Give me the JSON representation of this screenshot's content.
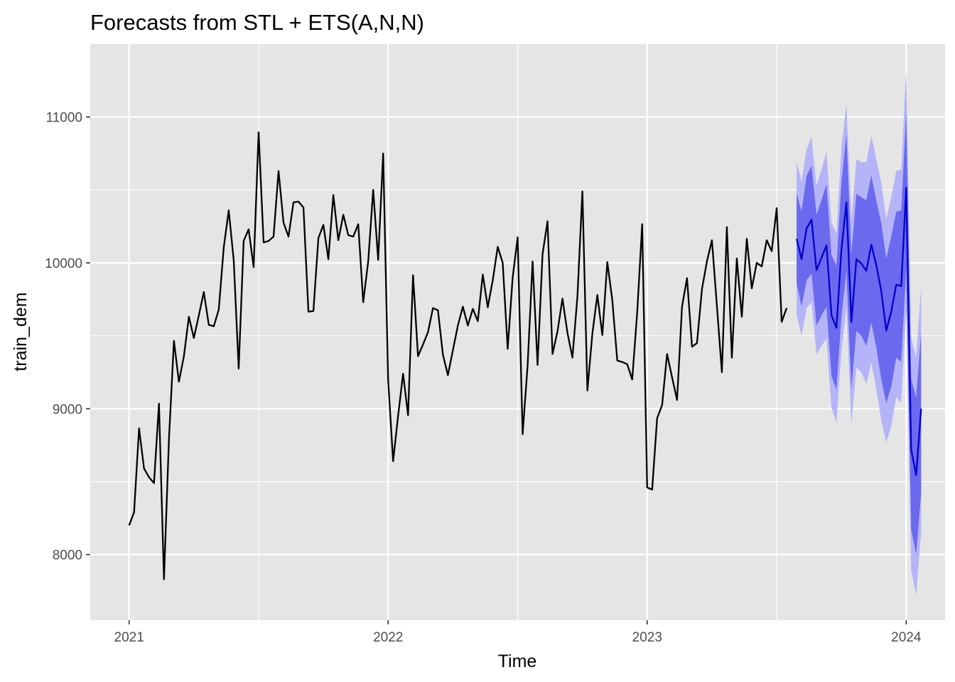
{
  "chart_data": {
    "type": "line",
    "title": "Forecasts from STL +  ETS(A,N,N)",
    "xlabel": "Time",
    "ylabel": "train_dem",
    "xlim": [
      2020.85,
      2024.15
    ],
    "ylim": [
      7550,
      11500
    ],
    "x_ticks": [
      2021,
      2022,
      2023,
      2024
    ],
    "y_ticks": [
      8000,
      9000,
      10000,
      11000
    ],
    "grid": true,
    "colors": {
      "panel": "#e5e5e5",
      "history": "#000000",
      "forecast": "#0000cc",
      "band80": "#6b69ee",
      "band95": "#b5b4f8"
    },
    "series": [
      {
        "role": "history",
        "start": 2021.0,
        "frequency": 52,
        "values": [
          8200,
          8290,
          8865,
          8590,
          8530,
          8490,
          9035,
          7830,
          8790,
          9465,
          9185,
          9360,
          9630,
          9485,
          9640,
          9800,
          9575,
          9565,
          9680,
          10105,
          10360,
          10020,
          9275,
          10150,
          10230,
          9970,
          10895,
          10140,
          10150,
          10180,
          10630,
          10275,
          10180,
          10415,
          10420,
          10380,
          9665,
          9670,
          10170,
          10260,
          10025,
          10465,
          10155,
          10330,
          10190,
          10180,
          10265,
          9730,
          10010,
          10500,
          10020,
          10750,
          9200,
          8640,
          8950,
          9240,
          8955,
          9915,
          9360,
          9440,
          9525,
          9690,
          9675,
          9370,
          9230,
          9400,
          9570,
          9700,
          9570,
          9685,
          9600,
          9920,
          9695,
          9880,
          10110,
          10000,
          9410,
          9900,
          10175,
          8825,
          9295,
          10010,
          9300,
          10060,
          10285,
          9375,
          9530,
          9755,
          9520,
          9350,
          9770,
          10490,
          9125,
          9515,
          9780,
          9505,
          10005,
          9745,
          9330,
          9320,
          9305,
          9200,
          9660,
          10265,
          8460,
          8445,
          8935,
          9025,
          9375,
          9215,
          9060,
          9700,
          9895,
          9425,
          9450,
          9820,
          10010,
          10155,
          9705,
          9250,
          10245,
          9350,
          10030,
          9630,
          10165,
          9825,
          10000,
          9975,
          10155,
          10080,
          10375,
          9595,
          9690
        ]
      },
      {
        "role": "forecast",
        "start": 2023.5769,
        "frequency": 52,
        "values": [
          10165,
          10025,
          10235,
          10295,
          9950,
          10035,
          10120,
          9640,
          9555,
          10090,
          10415,
          9595,
          10025,
          9995,
          9945,
          10125,
          9985,
          9805,
          9535,
          9665,
          9850,
          9840,
          10515,
          8720,
          8545,
          9000
        ],
        "lower80": [
          9860,
          9700,
          9880,
          9925,
          9570,
          9640,
          9700,
          9225,
          9130,
          9630,
          9945,
          9135,
          9535,
          9500,
          9430,
          9590,
          9420,
          9200,
          9040,
          9150,
          9350,
          9320,
          9960,
          8175,
          8000,
          8420
        ],
        "upper80": [
          10475,
          10355,
          10595,
          10665,
          10330,
          10430,
          10540,
          10055,
          9980,
          10550,
          10885,
          10055,
          10475,
          10450,
          10430,
          10600,
          10425,
          10270,
          10030,
          10180,
          10350,
          10360,
          11025,
          9205,
          9075,
          9520
        ],
        "lower95": [
          9640,
          9500,
          9690,
          9730,
          9370,
          9430,
          9480,
          9005,
          8905,
          9390,
          9695,
          8895,
          9280,
          9250,
          9170,
          9315,
          9135,
          8920,
          8770,
          8880,
          9080,
          9040,
          9670,
          7890,
          7725,
          8150
        ],
        "upper95": [
          10690,
          10560,
          10780,
          10860,
          10530,
          10640,
          10760,
          10275,
          10205,
          10790,
          11090,
          10290,
          10710,
          10690,
          10690,
          10870,
          10710,
          10550,
          10300,
          10450,
          10630,
          10640,
          11320,
          9490,
          9350,
          9840
        ]
      }
    ]
  }
}
